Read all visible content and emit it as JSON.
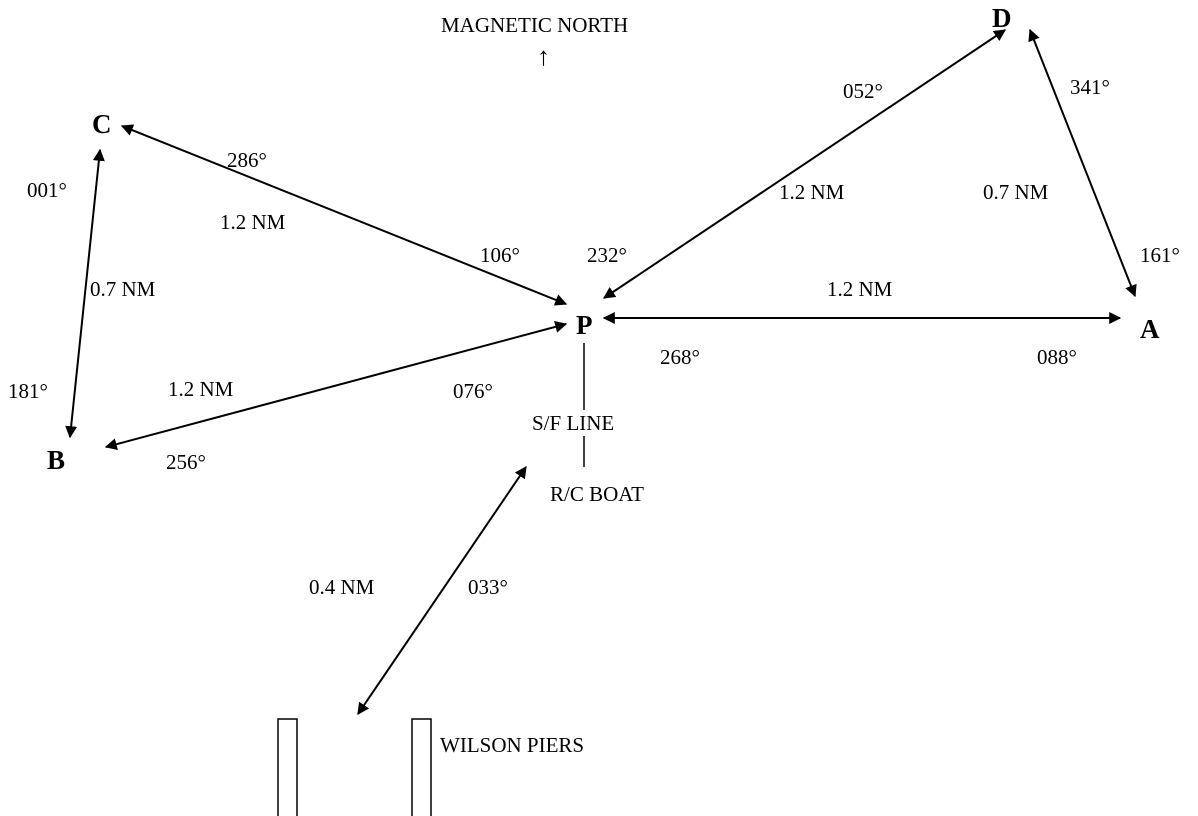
{
  "header": {
    "north_label": "MAGNETIC NORTH",
    "north_arrow": "↑"
  },
  "points": {
    "P": "P",
    "A": "A",
    "B": "B",
    "C": "C",
    "D": "D"
  },
  "legs": {
    "p_a": {
      "distance": "1.2 NM",
      "bearing_out": "088°",
      "bearing_back": "268°"
    },
    "p_d": {
      "distance": "1.2 NM",
      "bearing_out": "052°",
      "bearing_back": "232°"
    },
    "d_a": {
      "distance": "0.7 NM",
      "bearing_out": "161°",
      "bearing_back": "341°"
    },
    "p_c": {
      "distance": "1.2 NM",
      "bearing_out": "286°",
      "bearing_back": "106°"
    },
    "c_b": {
      "distance": "0.7 NM",
      "bearing_out": "181°",
      "bearing_back": "001°"
    },
    "p_b": {
      "distance": "1.2 NM",
      "bearing_out": "256°",
      "bearing_back": "076°"
    },
    "piers_rc": {
      "distance": "0.4 NM",
      "bearing_out": "033°"
    }
  },
  "labels": {
    "sf_line": "S/F LINE",
    "rc_boat": "R/C BOAT",
    "wilson_piers": "WILSON PIERS"
  }
}
